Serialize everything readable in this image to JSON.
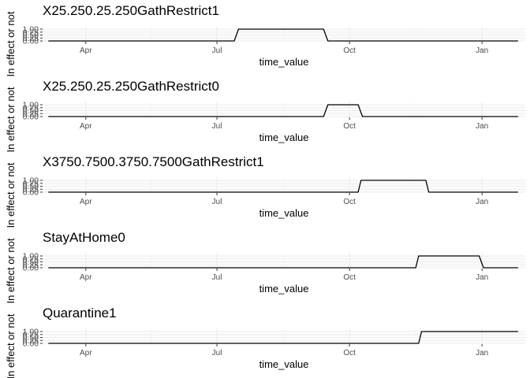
{
  "chart_data": [
    {
      "type": "line",
      "title": "X25.250.25.250GathRestrict1",
      "xlabel": "time_value",
      "ylabel": "In effect or not",
      "x_tick_labels": [
        "Apr",
        "Jul",
        "Oct",
        "Jan"
      ],
      "y_tick_labels": [
        "1.00",
        "0.75",
        "0.50",
        "0.25",
        "0.00"
      ],
      "ylim": [
        0,
        1
      ],
      "xlim": [
        "2020-03-02",
        "2021-01-31"
      ],
      "points": [
        [
          "2020-03-06",
          0
        ],
        [
          "2020-07-13",
          0
        ],
        [
          "2020-07-16",
          1
        ],
        [
          "2020-09-13",
          1
        ],
        [
          "2020-09-16",
          0
        ],
        [
          "2021-01-26",
          0
        ]
      ]
    },
    {
      "type": "line",
      "title": "X25.250.25.250GathRestrict0",
      "xlabel": "time_value",
      "ylabel": "In effect or not",
      "x_tick_labels": [
        "Apr",
        "Jul",
        "Oct",
        "Jan"
      ],
      "y_tick_labels": [
        "1.00",
        "0.75",
        "0.50",
        "0.25",
        "0.00"
      ],
      "ylim": [
        0,
        1
      ],
      "xlim": [
        "2020-03-02",
        "2021-01-31"
      ],
      "points": [
        [
          "2020-03-06",
          0
        ],
        [
          "2020-09-13",
          0
        ],
        [
          "2020-09-16",
          1
        ],
        [
          "2020-10-07",
          1
        ],
        [
          "2020-10-10",
          0
        ],
        [
          "2021-01-26",
          0
        ]
      ]
    },
    {
      "type": "line",
      "title": "X3750.7500.3750.7500GathRestrict1",
      "xlabel": "time_value",
      "ylabel": "In effect or not",
      "x_tick_labels": [
        "Apr",
        "Jul",
        "Oct",
        "Jan"
      ],
      "y_tick_labels": [
        "1.00",
        "0.75",
        "0.50",
        "0.25",
        "0.00"
      ],
      "ylim": [
        0,
        1
      ],
      "xlim": [
        "2020-03-02",
        "2021-01-31"
      ],
      "points": [
        [
          "2020-03-06",
          0
        ],
        [
          "2020-10-07",
          0
        ],
        [
          "2020-10-09",
          1
        ],
        [
          "2020-11-23",
          1
        ],
        [
          "2020-11-25",
          0
        ],
        [
          "2021-01-26",
          0
        ]
      ]
    },
    {
      "type": "line",
      "title": "StayAtHome0",
      "xlabel": "time_value",
      "ylabel": "In effect or not",
      "x_tick_labels": [
        "Apr",
        "Jul",
        "Oct",
        "Jan"
      ],
      "y_tick_labels": [
        "1.00",
        "0.75",
        "0.50",
        "0.25",
        "0.00"
      ],
      "ylim": [
        0,
        1
      ],
      "xlim": [
        "2020-03-02",
        "2021-01-31"
      ],
      "points": [
        [
          "2020-03-06",
          0
        ],
        [
          "2020-11-16",
          0
        ],
        [
          "2020-11-18",
          1
        ],
        [
          "2020-12-30",
          1
        ],
        [
          "2021-01-02",
          0
        ],
        [
          "2021-01-26",
          0
        ]
      ]
    },
    {
      "type": "line",
      "title": "Quarantine1",
      "xlabel": "time_value",
      "ylabel": "In effect or not",
      "x_tick_labels": [
        "Apr",
        "Jul",
        "Oct",
        "Jan"
      ],
      "y_tick_labels": [
        "1.00",
        "0.75",
        "0.50",
        "0.25",
        "0.00"
      ],
      "ylim": [
        0,
        1
      ],
      "xlim": [
        "2020-03-02",
        "2021-01-31"
      ],
      "points": [
        [
          "2020-03-06",
          0
        ],
        [
          "2020-11-18",
          0
        ],
        [
          "2020-11-20",
          1
        ],
        [
          "2021-01-26",
          1
        ]
      ]
    }
  ],
  "x_tick_dates": [
    "2020-04-01",
    "2020-07-01",
    "2020-10-01",
    "2021-01-01"
  ],
  "y_tick_values": [
    1,
    0.75,
    0.5,
    0.25,
    0
  ],
  "grid": true,
  "colors": {
    "panel_background": "#ffffff",
    "grid_major": "#ebebeb",
    "grid_minor": "#f2f2f2",
    "line": "#000000",
    "tick_label": "#4d4d4d"
  }
}
